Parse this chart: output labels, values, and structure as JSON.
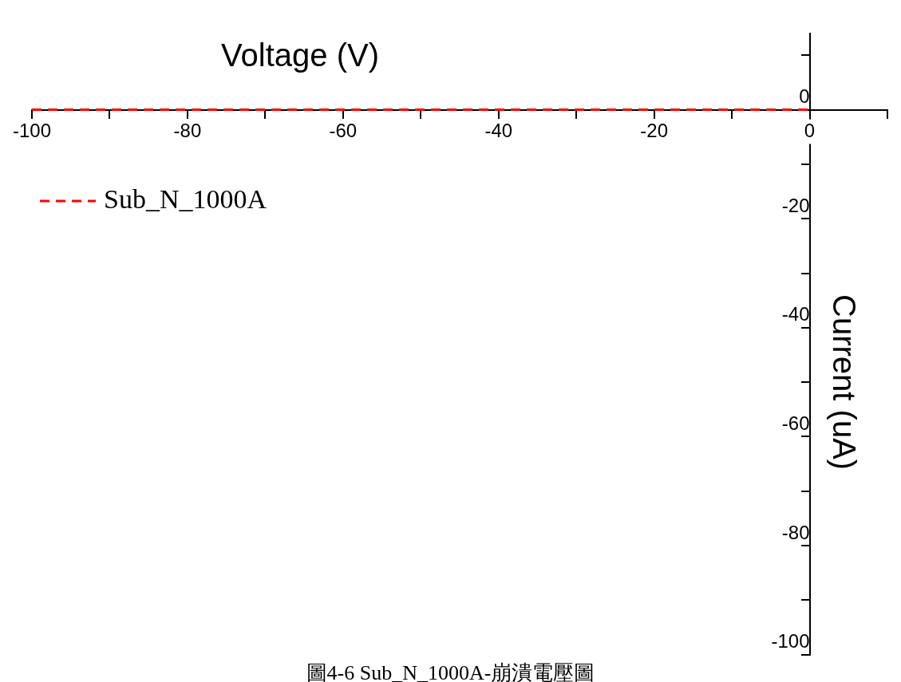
{
  "chart_data": {
    "type": "line",
    "xlabel": "Voltage (V)",
    "ylabel": "Current (uA)",
    "annotations": [
      "圖4-6 Sub_N_1000A-崩潰電壓圖"
    ],
    "x": [
      -100,
      0
    ],
    "series": [
      {
        "name": "Sub_N_1000A",
        "color": "#ff0000",
        "values": [
          0,
          0
        ],
        "line_style": "dashed"
      }
    ],
    "xlim": [
      -100,
      10
    ],
    "ylim": [
      -100,
      14
    ],
    "xticks": [
      -100,
      {
        "value": -90,
        "label": null
      },
      -80,
      {
        "value": -70,
        "label": null
      },
      -60,
      {
        "value": -50,
        "label": null
      },
      -40,
      {
        "value": -30,
        "label": null
      },
      -20,
      {
        "value": -10,
        "label": null
      },
      0,
      {
        "value": 10,
        "label": null
      }
    ],
    "yticks": [
      -100,
      {
        "value": -90,
        "label": null
      },
      -80,
      {
        "value": -70,
        "label": null
      },
      -60,
      {
        "value": -50,
        "label": null
      },
      -40,
      {
        "value": -30,
        "label": null
      },
      -20,
      {
        "value": -10,
        "label": null
      },
      0,
      {
        "value": 10,
        "label": null
      }
    ],
    "grid": false,
    "legend": "top left",
    "marker": "none"
  }
}
